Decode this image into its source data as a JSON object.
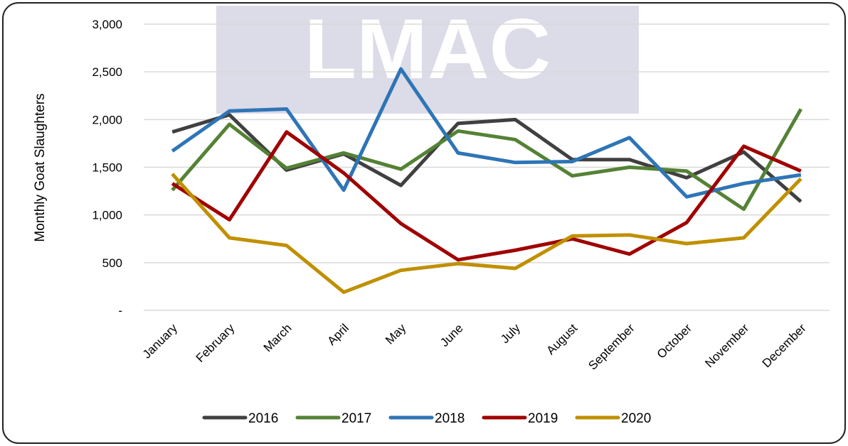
{
  "chart_data": {
    "type": "line",
    "watermark": "LMAC",
    "y_label": "Monthly Goat Slaughters",
    "categories": [
      "January",
      "February",
      "March",
      "April",
      "May",
      "June",
      "July",
      "August",
      "September",
      "October",
      "November",
      "December"
    ],
    "series": [
      {
        "name": "2016",
        "color": "#404040",
        "values": [
          1870,
          2050,
          1470,
          1640,
          1310,
          1960,
          2000,
          1580,
          1580,
          1390,
          1660,
          1140
        ]
      },
      {
        "name": "2017",
        "color": "#548235",
        "values": [
          1260,
          1950,
          1490,
          1650,
          1480,
          1880,
          1790,
          1410,
          1500,
          1460,
          1060,
          2110
        ]
      },
      {
        "name": "2018",
        "color": "#2e75b6",
        "values": [
          1670,
          2090,
          2110,
          1260,
          2530,
          1650,
          1550,
          1560,
          1810,
          1190,
          1330,
          1420
        ]
      },
      {
        "name": "2019",
        "color": "#a00000",
        "values": [
          1330,
          950,
          1870,
          1440,
          910,
          530,
          630,
          750,
          590,
          920,
          1720,
          1460
        ]
      },
      {
        "name": "2020",
        "color": "#c09000",
        "values": [
          1430,
          760,
          680,
          190,
          420,
          490,
          440,
          780,
          790,
          700,
          760,
          1380
        ]
      }
    ],
    "ylim": [
      0,
      3000
    ],
    "yticks": [
      {
        "value": 0,
        "label": "-"
      },
      500,
      {
        "value": 1000,
        "label": "1,000"
      },
      {
        "value": 1500,
        "label": "1,500"
      },
      {
        "value": 2000,
        "label": "2,000"
      },
      {
        "value": 2500,
        "label": "2,500"
      },
      {
        "value": 3000,
        "label": "3,000"
      }
    ],
    "grid": true
  }
}
